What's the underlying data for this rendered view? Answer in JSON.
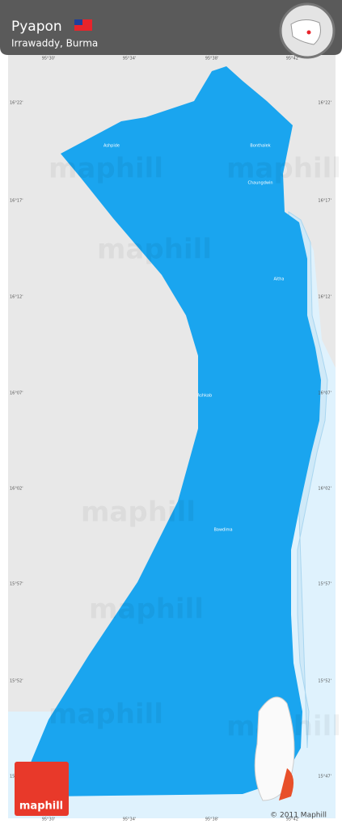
{
  "header": {
    "title": "Pyapon",
    "subtitle": "Irrawaddy, Burma"
  },
  "map": {
    "latitude_labels": [
      "16°22'",
      "16°17'",
      "16°12'",
      "16°07'",
      "16°02'",
      "15°57'",
      "15°52'",
      "15°47'"
    ],
    "longitude_labels": [
      "95°30'",
      "95°34'",
      "95°38'",
      "95°42'"
    ],
    "places": [
      "Ashpide",
      "Bonthalek",
      "Chaungdwin",
      "Aitha",
      "Ashkab",
      "Bawdima"
    ],
    "watermark": "maphill"
  },
  "footer": {
    "logo": "maphill",
    "copyright": "© 2011 Maphill"
  }
}
